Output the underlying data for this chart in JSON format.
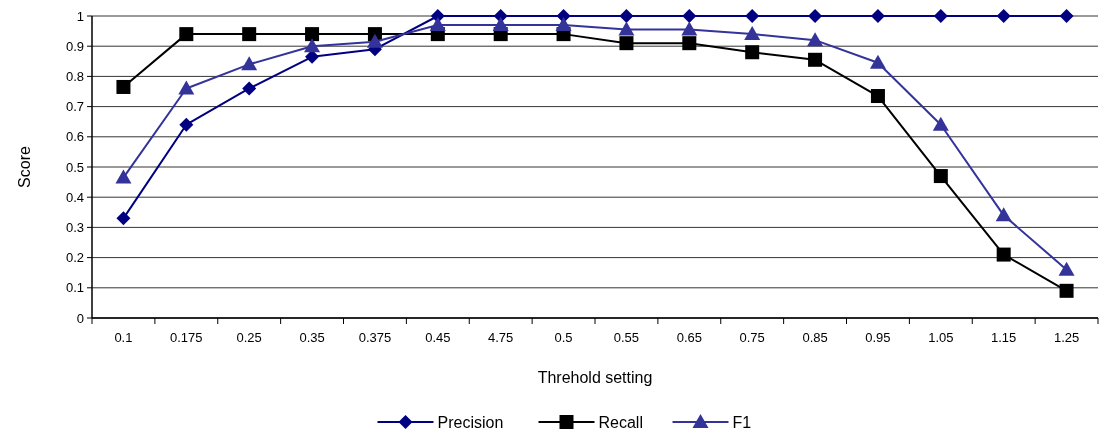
{
  "chart_data": {
    "type": "line",
    "xlabel": "Threhold setting",
    "ylabel": "Score",
    "categories": [
      "0.1",
      "0.175",
      "0.25",
      "0.35",
      "0.375",
      "0.45",
      "4.75",
      "0.5",
      "0.55",
      "0.65",
      "0.75",
      "0.85",
      "0.95",
      "1.05",
      "1.15",
      "1.25"
    ],
    "ylim": [
      0,
      1
    ],
    "yticks": [
      0,
      0.1,
      0.2,
      0.3,
      0.4,
      0.5,
      0.6,
      0.7,
      0.8,
      0.9,
      1
    ],
    "grid": "y",
    "legend": "bottom",
    "series": [
      {
        "name": "Precision",
        "color": "#000080",
        "marker": "diamond",
        "values": [
          0.33,
          0.64,
          0.76,
          0.865,
          0.89,
          1,
          1,
          1,
          1,
          1,
          1,
          1,
          1,
          1,
          1,
          1
        ]
      },
      {
        "name": "Recall",
        "color": "#000000",
        "marker": "square",
        "values": [
          0.765,
          0.94,
          0.94,
          0.94,
          0.94,
          0.94,
          0.94,
          0.94,
          0.91,
          0.91,
          0.88,
          0.855,
          0.735,
          0.47,
          0.21,
          0.09
        ]
      },
      {
        "name": "F1",
        "color": "#333399",
        "marker": "triangle",
        "values": [
          0.465,
          0.76,
          0.84,
          0.9,
          0.915,
          0.97,
          0.97,
          0.97,
          0.955,
          0.955,
          0.94,
          0.92,
          0.845,
          0.64,
          0.34,
          0.16
        ]
      }
    ]
  }
}
